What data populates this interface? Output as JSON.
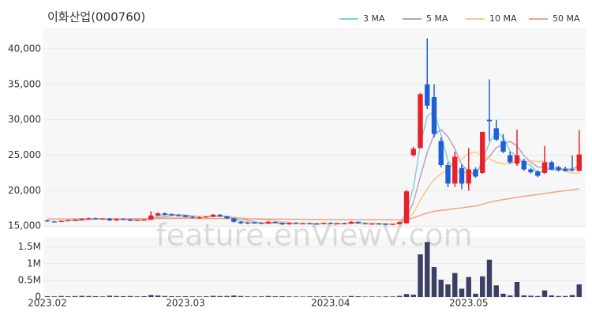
{
  "watermark": "feature.enViewV.com",
  "chart_data": [
    {
      "type": "candlestick",
      "title": "이화산업(000760)",
      "up_color": "#e8202a",
      "down_color": "#1f5fd6",
      "ylim": [
        14800,
        43000
      ],
      "yticks": [
        {
          "value": 15000,
          "label": "15,000"
        },
        {
          "value": 20000,
          "label": "20,000"
        },
        {
          "value": 25000,
          "label": "25,000"
        },
        {
          "value": 30000,
          "label": "30,000"
        },
        {
          "value": 35000,
          "label": "35,000"
        },
        {
          "value": 40000,
          "label": "40,000"
        }
      ],
      "grid": true,
      "legend": "top-right",
      "open": [
        15800,
        15650,
        15600,
        15750,
        15850,
        15900,
        16050,
        16100,
        16000,
        16050,
        15800,
        16000,
        15950,
        15750,
        15850,
        15900,
        16500,
        16800,
        16650,
        16550,
        16500,
        16300,
        16200,
        16250,
        16350,
        16600,
        16400,
        16100,
        15600,
        15400,
        15500,
        15450,
        15350,
        15600,
        15450,
        15250,
        15450,
        15350,
        15400,
        15350,
        15300,
        15450,
        15350,
        15400,
        15350,
        15600,
        15400,
        15300,
        15350,
        15300,
        15250,
        15300,
        15400,
        25000,
        26000,
        35000,
        33200,
        27000,
        23600,
        21000,
        23200,
        21000,
        23000,
        22500,
        30000,
        28800,
        27000,
        25000,
        23800,
        24200,
        23000,
        22700,
        22500,
        24000,
        23300,
        23100,
        23000,
        22800
      ],
      "high": [
        15900,
        15750,
        15800,
        15900,
        16000,
        16100,
        16200,
        16200,
        16100,
        16150,
        16050,
        16100,
        16000,
        15900,
        16000,
        17100,
        16900,
        16900,
        16800,
        16700,
        16600,
        16400,
        16350,
        16400,
        16700,
        16700,
        16450,
        16150,
        15700,
        15600,
        15600,
        15550,
        15700,
        15650,
        15500,
        15500,
        15550,
        15450,
        15500,
        15450,
        15500,
        15550,
        15450,
        15500,
        15700,
        15650,
        15450,
        15400,
        15450,
        15400,
        15350,
        15650,
        20100,
        26200,
        33800,
        41500,
        35000,
        27500,
        24000,
        25500,
        23700,
        26000,
        23300,
        28300,
        35700,
        30000,
        28000,
        25500,
        28600,
        24500,
        23200,
        22900,
        26300,
        24200,
        23500,
        23400,
        25000,
        28500
      ],
      "low": [
        15600,
        15500,
        15550,
        15700,
        15800,
        15850,
        16000,
        15950,
        15900,
        15700,
        15750,
        15900,
        15700,
        15700,
        15800,
        15900,
        16400,
        16500,
        16500,
        16400,
        16200,
        16100,
        16100,
        16200,
        16300,
        16300,
        16000,
        15500,
        15300,
        15300,
        15350,
        15300,
        15300,
        15400,
        15150,
        15200,
        15300,
        15250,
        15300,
        15200,
        15250,
        15300,
        15250,
        15300,
        15300,
        15350,
        15250,
        15200,
        15250,
        15200,
        15150,
        15250,
        15350,
        24800,
        26000,
        31500,
        27500,
        23300,
        20500,
        20500,
        20200,
        20000,
        21800,
        22400,
        27000,
        27000,
        25300,
        23800,
        23500,
        22800,
        22400,
        21900,
        22400,
        22900,
        22700,
        22700,
        22700,
        22700
      ],
      "close": [
        15650,
        15600,
        15750,
        15850,
        15900,
        16050,
        16100,
        16000,
        16050,
        15800,
        16000,
        15950,
        15750,
        15850,
        15900,
        16500,
        16800,
        16600,
        16550,
        16500,
        16300,
        16200,
        16250,
        16350,
        16600,
        16400,
        16100,
        15600,
        15400,
        15500,
        15450,
        15350,
        15600,
        15450,
        15250,
        15450,
        15350,
        15400,
        15350,
        15300,
        15450,
        15350,
        15400,
        15350,
        15600,
        15400,
        15300,
        15350,
        15300,
        15250,
        15300,
        15550,
        19900,
        25900,
        33600,
        32000,
        28000,
        23600,
        21000,
        24800,
        21000,
        23000,
        22000,
        28300,
        29800,
        27200,
        25500,
        24000,
        25000,
        23000,
        22600,
        22100,
        24000,
        23000,
        22900,
        22800,
        22900,
        25100
      ],
      "series": [
        {
          "name": "3 MA",
          "color": "#7fd3d4",
          "values": [
            null,
            null,
            15670,
            15730,
            15830,
            15930,
            16020,
            16050,
            16050,
            15950,
            15950,
            15920,
            15900,
            15850,
            15830,
            16080,
            16400,
            16630,
            16650,
            16550,
            16450,
            16330,
            16250,
            16270,
            16400,
            16450,
            16370,
            16030,
            15700,
            15500,
            15450,
            15430,
            15470,
            15470,
            15430,
            15380,
            15350,
            15400,
            15370,
            15350,
            15370,
            15370,
            15400,
            15370,
            15450,
            15450,
            15430,
            15350,
            15320,
            15300,
            15280,
            15370,
            16920,
            20450,
            26470,
            30500,
            31200,
            27870,
            24200,
            23130,
            22270,
            22930,
            22000,
            24430,
            26700,
            28430,
            27500,
            25570,
            24830,
            24000,
            23530,
            22570,
            22900,
            23030,
            23300,
            22900,
            22870,
            23600
          ]
        },
        {
          "name": "5 MA",
          "color": "#b3a3c6",
          "values": [
            null,
            null,
            null,
            null,
            15750,
            15830,
            15930,
            15980,
            16020,
            16000,
            16000,
            15960,
            15910,
            15870,
            15890,
            15990,
            16160,
            16330,
            16470,
            16590,
            16550,
            16430,
            16360,
            16320,
            16340,
            16360,
            16340,
            16210,
            16020,
            15800,
            15610,
            15460,
            15460,
            15470,
            15420,
            15420,
            15420,
            15380,
            15360,
            15370,
            15370,
            15370,
            15370,
            15370,
            15430,
            15420,
            15410,
            15400,
            15390,
            15320,
            15300,
            15350,
            16260,
            18380,
            21970,
            25390,
            27880,
            28620,
            27640,
            25880,
            23680,
            22680,
            22360,
            23820,
            24820,
            26060,
            26560,
            26960,
            26300,
            24940,
            24020,
            23340,
            23340,
            22940,
            22920,
            22960,
            23120,
            23340
          ]
        },
        {
          "name": "10 MA",
          "color": "#f5c98a",
          "values": [
            null,
            null,
            null,
            null,
            null,
            null,
            null,
            null,
            null,
            15880,
            15910,
            15950,
            15950,
            15950,
            15950,
            15990,
            16060,
            16120,
            16170,
            16240,
            16270,
            16290,
            16340,
            16390,
            16460,
            16450,
            16380,
            16280,
            16160,
            16060,
            15970,
            15890,
            15820,
            15730,
            15600,
            15510,
            15440,
            15420,
            15420,
            15400,
            15400,
            15390,
            15370,
            15360,
            15390,
            15380,
            15370,
            15360,
            15350,
            15340,
            15330,
            15350,
            15800,
            16840,
            18640,
            20300,
            21570,
            22400,
            22970,
            23920,
            24490,
            25240,
            25450,
            24920,
            24500,
            24020,
            23770,
            23810,
            24210,
            24030,
            24190,
            24100,
            24200,
            23690,
            23100,
            22690,
            22480,
            22490
          ]
        },
        {
          "name": "50 MA",
          "color": "#f4a08a",
          "values": [
            16000,
            16000,
            16010,
            16010,
            16020,
            16020,
            16030,
            16030,
            16030,
            16040,
            16040,
            16040,
            16050,
            16050,
            16050,
            16060,
            16070,
            16080,
            16080,
            16080,
            16080,
            16080,
            16070,
            16070,
            16070,
            16070,
            16060,
            16050,
            16040,
            16030,
            16020,
            16010,
            16000,
            15990,
            15980,
            15970,
            15960,
            15950,
            15940,
            15930,
            15930,
            15920,
            15920,
            15910,
            15910,
            15900,
            15900,
            15900,
            15900,
            15900,
            15890,
            15890,
            15960,
            16160,
            16520,
            16850,
            17080,
            17220,
            17320,
            17480,
            17570,
            17710,
            17830,
            18080,
            18360,
            18570,
            18750,
            18900,
            19060,
            19200,
            19330,
            19460,
            19610,
            19740,
            19870,
            19990,
            20120,
            20280
          ]
        }
      ]
    },
    {
      "type": "bar",
      "color": "#3b3f63",
      "categories": [
        "2023.02",
        null,
        null,
        null,
        null,
        null,
        null,
        null,
        null,
        null,
        null,
        null,
        null,
        null,
        null,
        null,
        null,
        null,
        null,
        null,
        "2023.03",
        null,
        null,
        null,
        null,
        null,
        null,
        null,
        null,
        null,
        null,
        null,
        null,
        null,
        null,
        null,
        null,
        null,
        null,
        null,
        null,
        "2023.04",
        null,
        null,
        null,
        null,
        null,
        null,
        null,
        null,
        null,
        null,
        null,
        null,
        null,
        null,
        null,
        null,
        null,
        null,
        null,
        "2023.05",
        null,
        null,
        null,
        null,
        null,
        null,
        null,
        null,
        null,
        null,
        null,
        null,
        null,
        null,
        null,
        null
      ],
      "values": [
        25000,
        20000,
        30000,
        22000,
        28000,
        35000,
        30000,
        25000,
        20000,
        40000,
        30000,
        25000,
        30000,
        20000,
        25000,
        60000,
        45000,
        30000,
        25000,
        20000,
        25000,
        20000,
        18000,
        22000,
        35000,
        28000,
        30000,
        45000,
        30000,
        20000,
        18000,
        20000,
        30000,
        22000,
        25000,
        20000,
        18000,
        15000,
        20000,
        18000,
        22000,
        20000,
        18000,
        15000,
        30000,
        22000,
        15000,
        18000,
        15000,
        20000,
        18000,
        35000,
        90000,
        70000,
        1280000,
        1650000,
        900000,
        520000,
        380000,
        720000,
        250000,
        600000,
        100000,
        620000,
        1120000,
        350000,
        100000,
        50000,
        450000,
        50000,
        40000,
        30000,
        200000,
        50000,
        30000,
        30000,
        60000,
        380000
      ],
      "ylim": [
        0,
        1800000
      ],
      "yticks": [
        0,
        {
          "value": 500000,
          "label": "0.5M"
        },
        {
          "value": 1000000,
          "label": "1M"
        },
        {
          "value": 1500000,
          "label": "1.5M"
        }
      ]
    }
  ]
}
